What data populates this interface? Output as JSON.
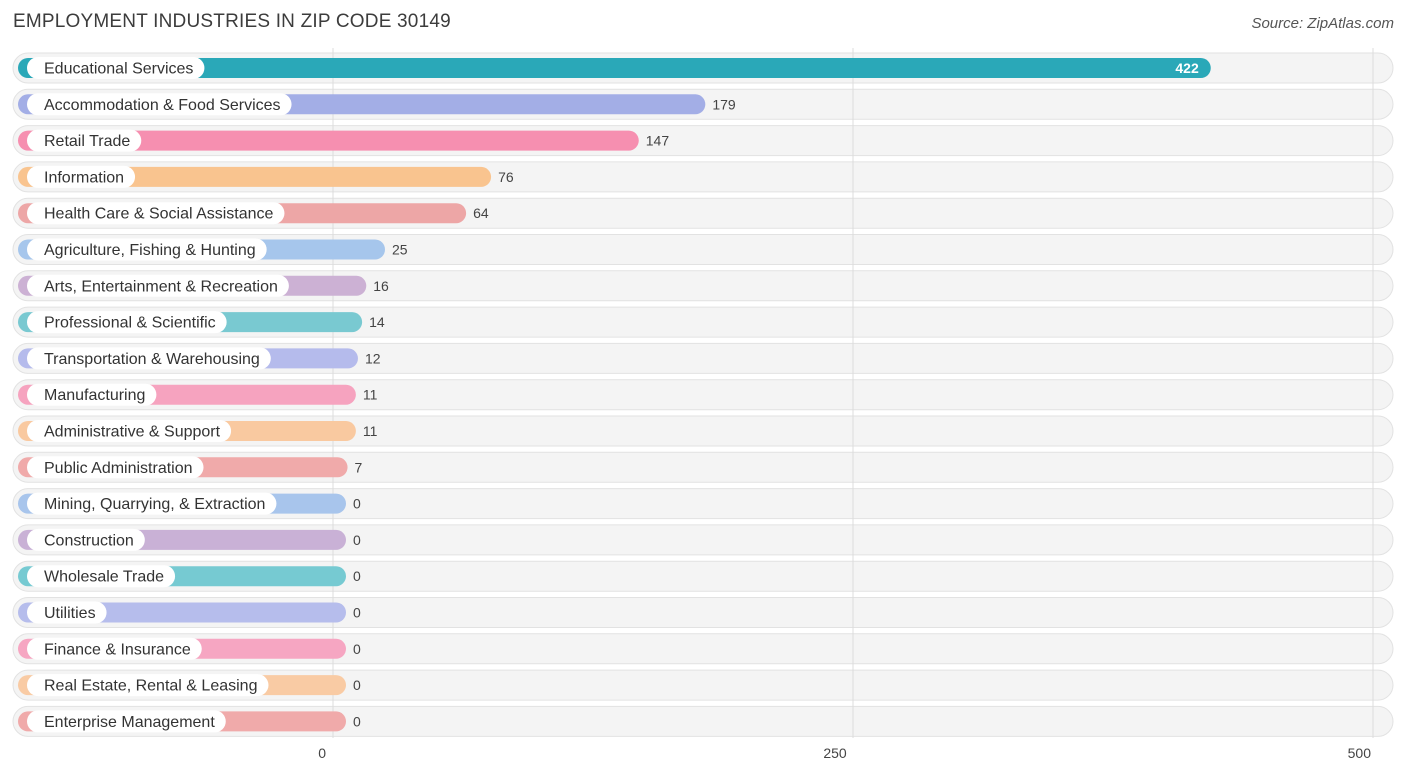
{
  "title": "EMPLOYMENT INDUSTRIES IN ZIP CODE 30149",
  "source": "Source: ZipAtlas.com",
  "chart_data": {
    "type": "bar",
    "orientation": "horizontal",
    "title": "EMPLOYMENT INDUSTRIES IN ZIP CODE 30149",
    "xlim": [
      0,
      500
    ],
    "x_ticks": [
      0,
      250,
      500
    ],
    "grid": true,
    "categories": [
      "Educational Services",
      "Accommodation & Food Services",
      "Retail Trade",
      "Information",
      "Health Care & Social Assistance",
      "Agriculture, Fishing & Hunting",
      "Arts, Entertainment & Recreation",
      "Professional & Scientific",
      "Transportation & Warehousing",
      "Manufacturing",
      "Administrative & Support",
      "Public Administration",
      "Mining, Quarrying, & Extraction",
      "Construction",
      "Wholesale Trade",
      "Utilities",
      "Finance & Insurance",
      "Real Estate, Rental & Leasing",
      "Enterprise Management"
    ],
    "values": [
      422,
      179,
      147,
      76,
      64,
      25,
      16,
      14,
      12,
      11,
      11,
      7,
      0,
      0,
      0,
      0,
      0,
      0,
      0
    ],
    "colors": [
      "#2aa8b8",
      "#a3aee6",
      "#f68fb0",
      "#f9c48f",
      "#eda6a6",
      "#a6c6ec",
      "#ccb1d4",
      "#79c9d1",
      "#b5bbec",
      "#f6a3bf",
      "#f9c9a0",
      "#f0aaaa",
      "#a8c5ec",
      "#c9b1d6",
      "#76cad2",
      "#b6bdec",
      "#f6a6c2",
      "#f9cba4",
      "#f0aaaa"
    ]
  }
}
